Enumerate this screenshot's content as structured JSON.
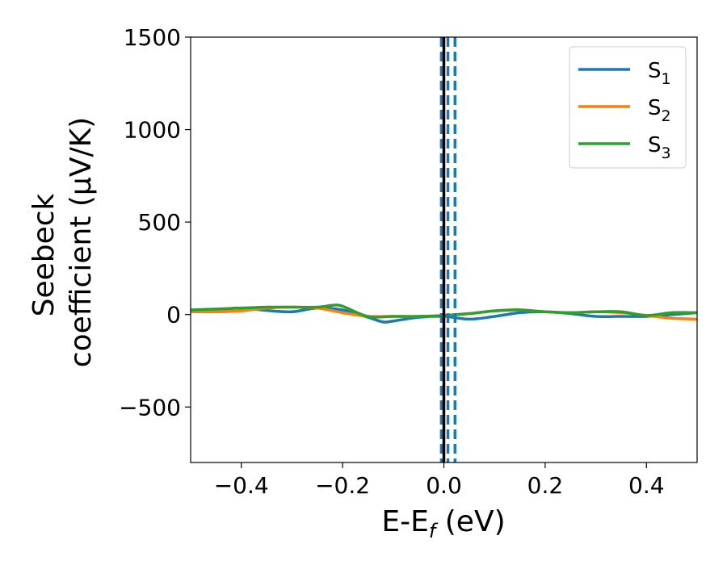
{
  "chart_data": {
    "type": "line",
    "xlabel": {
      "main": "E-E",
      "sub": "f",
      "unit": " (eV)"
    },
    "ylabel": {
      "line1": "Seebeck",
      "line2": "coefficient  (μV/K)"
    },
    "xlim": [
      -0.5,
      0.5
    ],
    "ylim": [
      -800,
      1500
    ],
    "x_ticks": [
      -0.4,
      -0.2,
      0.0,
      0.2,
      0.4
    ],
    "x_tick_labels": [
      "−0.4",
      "−0.2",
      "0.0",
      "0.2",
      "0.4"
    ],
    "y_ticks": [
      -500,
      0,
      500,
      1000,
      1500
    ],
    "y_tick_labels": [
      "−500",
      "0",
      "500",
      "1000",
      "1500"
    ],
    "legend_position": "top-right",
    "series": [
      {
        "name": "S",
        "sub": "1",
        "color": "#1f77b4",
        "x": [
          -0.5,
          -0.45,
          -0.4,
          -0.35,
          -0.3,
          -0.25,
          -0.2,
          -0.15,
          -0.12,
          -0.1,
          -0.05,
          0.0,
          0.05,
          0.1,
          0.15,
          0.2,
          0.25,
          0.3,
          0.35,
          0.4,
          0.45,
          0.5
        ],
        "y": [
          20,
          25,
          35,
          22,
          15,
          35,
          25,
          -15,
          -40,
          -35,
          -15,
          -10,
          -25,
          -10,
          10,
          15,
          5,
          -10,
          -10,
          -10,
          0,
          10
        ]
      },
      {
        "name": "S",
        "sub": "2",
        "color": "#ff7f0e",
        "x": [
          -0.5,
          -0.45,
          -0.4,
          -0.35,
          -0.3,
          -0.25,
          -0.2,
          -0.15,
          -0.1,
          -0.05,
          0.0,
          0.05,
          0.1,
          0.15,
          0.2,
          0.25,
          0.3,
          0.35,
          0.4,
          0.45,
          0.5
        ],
        "y": [
          15,
          15,
          20,
          35,
          40,
          35,
          10,
          -10,
          -10,
          -10,
          -5,
          5,
          20,
          25,
          15,
          10,
          15,
          10,
          -5,
          -20,
          -25
        ]
      },
      {
        "name": "S",
        "sub": "3",
        "color": "#2ca02c",
        "x": [
          -0.5,
          -0.45,
          -0.4,
          -0.35,
          -0.3,
          -0.25,
          -0.22,
          -0.2,
          -0.15,
          -0.1,
          -0.05,
          0.0,
          0.05,
          0.1,
          0.15,
          0.2,
          0.25,
          0.3,
          0.35,
          0.4,
          0.45,
          0.5
        ],
        "y": [
          25,
          30,
          35,
          40,
          40,
          40,
          50,
          45,
          -10,
          -10,
          -10,
          -5,
          5,
          20,
          25,
          15,
          10,
          15,
          15,
          -5,
          10,
          10
        ]
      }
    ],
    "vlines": [
      {
        "x": -0.005,
        "color": "#1f77b4",
        "style": "dashed"
      },
      {
        "x": 0.008,
        "color": "#1f77b4",
        "style": "dashed"
      },
      {
        "x": 0.022,
        "color": "#1f77b4",
        "style": "dashed"
      },
      {
        "x": 0.0,
        "color": "#000000",
        "style": "solid"
      }
    ]
  }
}
